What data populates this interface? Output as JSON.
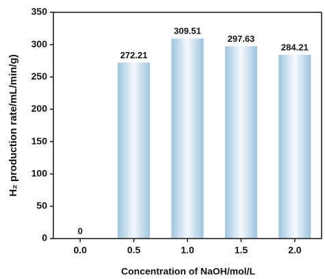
{
  "chart_data": {
    "type": "bar",
    "x_label": "Concentration of NaOH/mol/L",
    "y_label": "H₂ production rate/mL/min/g)",
    "categories": [
      "0.0",
      "0.5",
      "1.0",
      "1.5",
      "2.0"
    ],
    "values": [
      0,
      272.21,
      309.51,
      297.63,
      284.21
    ],
    "color": "#9fc4de",
    "ylim": [
      0,
      350
    ],
    "yticks": [
      0,
      50,
      100,
      150,
      200,
      250,
      300,
      350
    ],
    "grid": false
  }
}
